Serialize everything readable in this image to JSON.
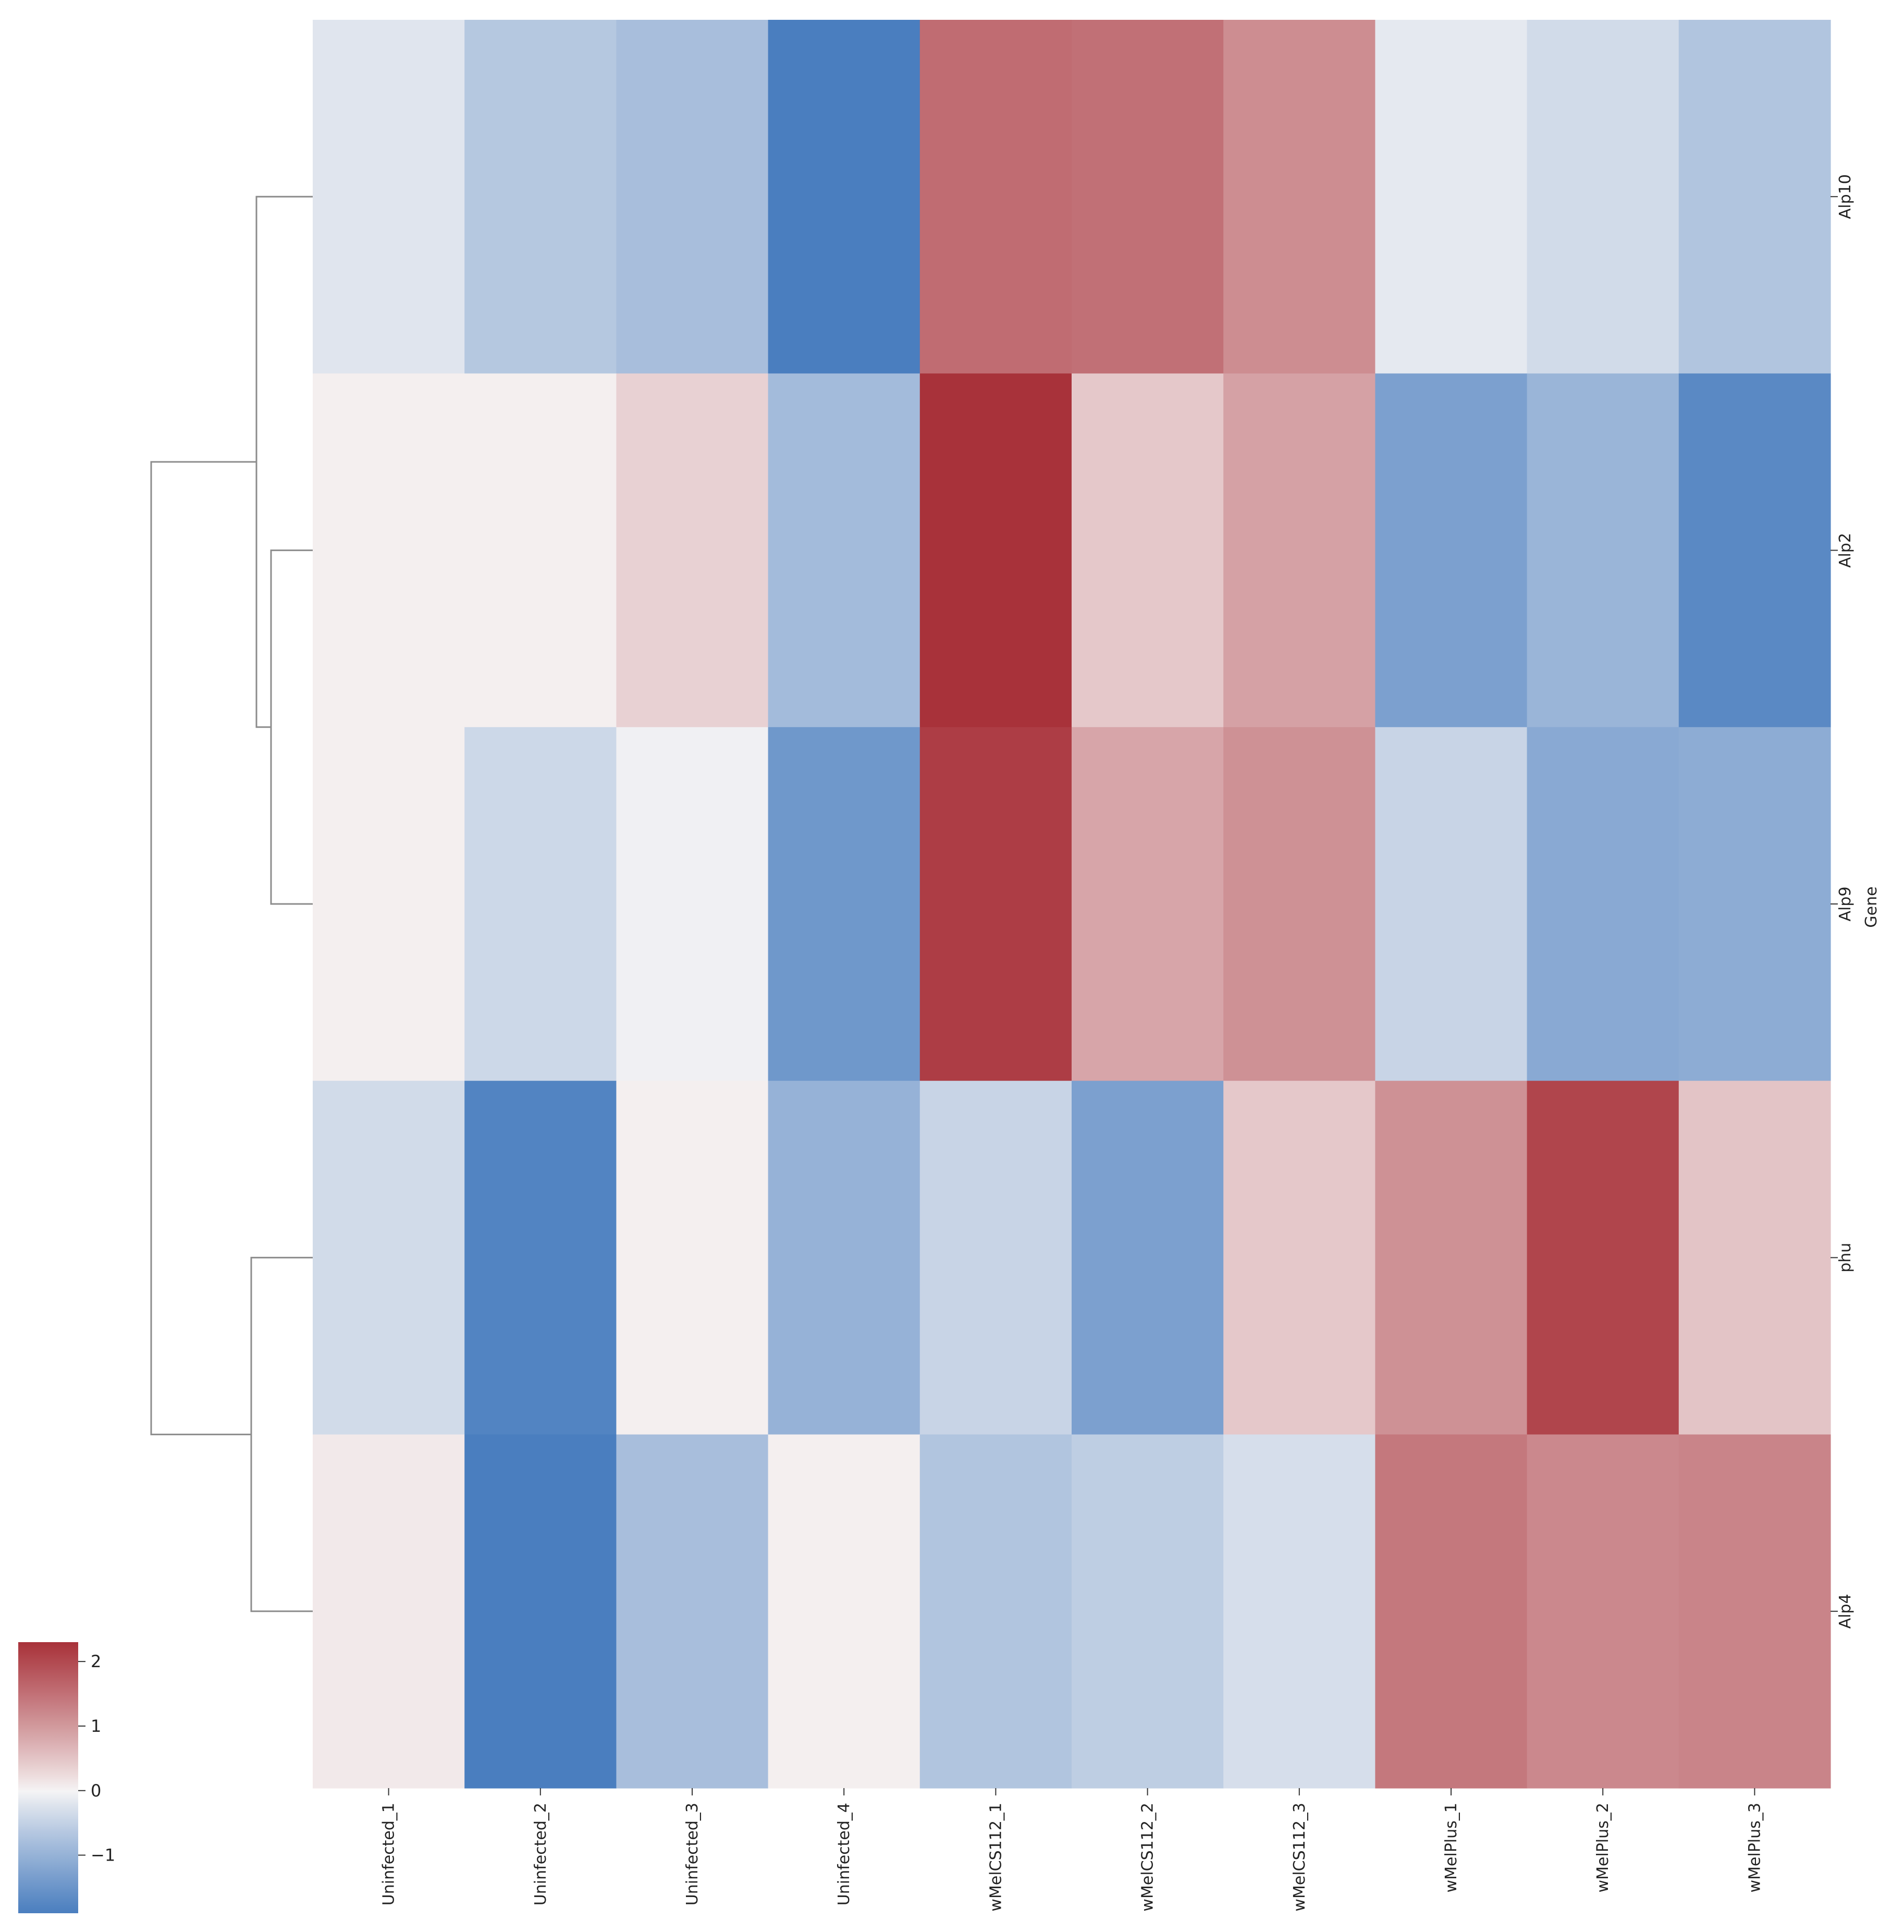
{
  "chart_data": {
    "type": "heatmap",
    "xlabel": "",
    "ylabel": "Gene",
    "columns": [
      "Uninfected_1",
      "Uninfected_2",
      "Uninfected_3",
      "Uninfected_4",
      "wMelCS112_1",
      "wMelCS112_2",
      "wMelCS112_3",
      "wMelPlus_1",
      "wMelPlus_2",
      "wMelPlus_3"
    ],
    "rows": [
      "Alp10",
      "Alp2",
      "Alp9",
      "phu",
      "Alp4"
    ],
    "values": [
      [
        -0.2,
        -0.65,
        -0.8,
        -1.95,
        1.55,
        1.5,
        1.15,
        -0.15,
        -0.35,
        -0.7
      ],
      [
        0.05,
        0.05,
        0.35,
        -0.85,
        2.3,
        0.45,
        0.9,
        -1.3,
        -0.95,
        -1.7
      ],
      [
        0.05,
        -0.4,
        -0.05,
        -1.45,
        2.15,
        0.85,
        1.1,
        -0.45,
        -1.15,
        -1.1
      ],
      [
        -0.35,
        -1.8,
        0.05,
        -1.0,
        -0.45,
        -1.3,
        0.45,
        1.1,
        2.05,
        0.5
      ],
      [
        0.1,
        -2.4,
        -0.8,
        0.05,
        -0.7,
        -0.55,
        -0.3,
        1.4,
        1.2,
        1.25
      ]
    ],
    "colorbar": {
      "colormap": "vlag",
      "range": [
        -1.9,
        2.3
      ],
      "ticks": [
        "2",
        "1",
        "0",
        "−1"
      ],
      "tick_values": [
        2,
        1,
        0,
        -1
      ]
    },
    "row_dendrogram": true,
    "colors": {
      "negative": "#4a7ebf",
      "neutral": "#f7f5f5",
      "positive": "#a8323a",
      "dendrogram": "#8c8c8c"
    }
  }
}
